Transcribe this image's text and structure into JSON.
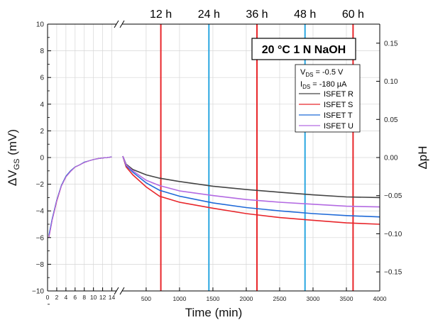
{
  "chart_data": {
    "type": "line",
    "xlabel": "Time (min)",
    "ylabel_left": "ΔV_GS (mV)",
    "ylabel_right": "ΔpH",
    "ylim_left": [
      -10,
      10
    ],
    "ylim_right": [
      -0.175,
      0.175
    ],
    "x_axis_break": true,
    "xlim_segment1": [
      0,
      15
    ],
    "xlim_segment2": [
      150,
      4000
    ],
    "x_ticks_segment1": [
      "0",
      "2",
      "4",
      "6",
      "8",
      "10",
      "12",
      "14"
    ],
    "x_ticks_segment2": [
      "500",
      "1000",
      "1500",
      "2000",
      "2500",
      "3000",
      "3500",
      "4000"
    ],
    "y_ticks_left": [
      "10",
      "8",
      "6",
      "4",
      "2",
      "0",
      "−2",
      "−4",
      "−6",
      "−8",
      "−10"
    ],
    "y_ticks_right": [
      "0.15",
      "0.10",
      "0.05",
      "0.00",
      "−0.05",
      "−0.10",
      "−0.15"
    ],
    "grid": true,
    "condition_label": "20 °C 1 N NaOH",
    "params": [
      "V",
      "DS",
      " = -0.5 V",
      "I",
      "DS",
      " = -180 µA"
    ],
    "vertical_markers": [
      {
        "label": "12 h",
        "x": 720,
        "color": "#e8262b"
      },
      {
        "label": "24 h",
        "x": 1440,
        "color": "#2aa6e0"
      },
      {
        "label": "36 h",
        "x": 2160,
        "color": "#e8262b"
      },
      {
        "label": "48 h",
        "x": 2880,
        "color": "#2aa6e0"
      },
      {
        "label": "60 h",
        "x": 3600,
        "color": "#e8262b"
      }
    ],
    "series": [
      {
        "name": "ISFET R",
        "color": "#444444",
        "seg1": [
          [
            0.3,
            -5.9
          ],
          [
            1,
            -4.6
          ],
          [
            2,
            -3.2
          ],
          [
            3,
            -2.1
          ],
          [
            4,
            -1.4
          ],
          [
            5,
            -1.0
          ],
          [
            6,
            -0.7
          ],
          [
            7,
            -0.55
          ],
          [
            8,
            -0.35
          ],
          [
            9,
            -0.25
          ],
          [
            10,
            -0.15
          ],
          [
            11,
            -0.08
          ],
          [
            12,
            -0.03
          ],
          [
            13,
            0.0
          ],
          [
            14,
            0.05
          ]
        ],
        "seg2": [
          [
            150,
            0.1
          ],
          [
            200,
            -0.5
          ],
          [
            300,
            -0.9
          ],
          [
            500,
            -1.3
          ],
          [
            700,
            -1.55
          ],
          [
            1000,
            -1.8
          ],
          [
            1500,
            -2.15
          ],
          [
            2000,
            -2.4
          ],
          [
            2500,
            -2.6
          ],
          [
            3000,
            -2.8
          ],
          [
            3500,
            -2.95
          ],
          [
            4000,
            -3.0
          ]
        ]
      },
      {
        "name": "ISFET S",
        "color": "#e8262b",
        "seg1": [
          [
            0.3,
            -6.0
          ],
          [
            1,
            -4.7
          ],
          [
            2,
            -3.3
          ],
          [
            3,
            -2.15
          ],
          [
            4,
            -1.45
          ],
          [
            5,
            -1.05
          ],
          [
            6,
            -0.72
          ],
          [
            7,
            -0.55
          ],
          [
            8,
            -0.37
          ],
          [
            9,
            -0.25
          ],
          [
            10,
            -0.15
          ],
          [
            11,
            -0.08
          ],
          [
            12,
            -0.03
          ],
          [
            13,
            0.0
          ],
          [
            14,
            0.04
          ]
        ],
        "seg2": [
          [
            150,
            0.1
          ],
          [
            200,
            -0.7
          ],
          [
            300,
            -1.3
          ],
          [
            500,
            -2.2
          ],
          [
            700,
            -2.9
          ],
          [
            1000,
            -3.35
          ],
          [
            1500,
            -3.8
          ],
          [
            2000,
            -4.2
          ],
          [
            2500,
            -4.5
          ],
          [
            3000,
            -4.7
          ],
          [
            3500,
            -4.9
          ],
          [
            4000,
            -5.0
          ]
        ]
      },
      {
        "name": "ISFET T",
        "color": "#1f6ad8",
        "seg1": [
          [
            0.3,
            -5.8
          ],
          [
            1,
            -4.6
          ],
          [
            2,
            -3.2
          ],
          [
            3,
            -2.1
          ],
          [
            4,
            -1.4
          ],
          [
            5,
            -1.0
          ],
          [
            6,
            -0.7
          ],
          [
            7,
            -0.55
          ],
          [
            8,
            -0.35
          ],
          [
            9,
            -0.25
          ],
          [
            10,
            -0.15
          ],
          [
            11,
            -0.08
          ],
          [
            12,
            -0.03
          ],
          [
            13,
            0.0
          ],
          [
            14,
            0.05
          ]
        ],
        "seg2": [
          [
            150,
            0.1
          ],
          [
            200,
            -0.6
          ],
          [
            300,
            -1.1
          ],
          [
            500,
            -1.9
          ],
          [
            700,
            -2.45
          ],
          [
            1000,
            -2.9
          ],
          [
            1500,
            -3.4
          ],
          [
            2000,
            -3.75
          ],
          [
            2500,
            -4.0
          ],
          [
            3000,
            -4.2
          ],
          [
            3500,
            -4.35
          ],
          [
            4000,
            -4.45
          ]
        ]
      },
      {
        "name": "ISFET U",
        "color": "#b36ae2",
        "seg1": [
          [
            0.3,
            -6.0
          ],
          [
            1,
            -4.7
          ],
          [
            2,
            -3.25
          ],
          [
            3,
            -2.15
          ],
          [
            4,
            -1.45
          ],
          [
            5,
            -1.05
          ],
          [
            6,
            -0.72
          ],
          [
            7,
            -0.55
          ],
          [
            8,
            -0.37
          ],
          [
            9,
            -0.25
          ],
          [
            10,
            -0.15
          ],
          [
            11,
            -0.08
          ],
          [
            12,
            -0.03
          ],
          [
            13,
            0.0
          ],
          [
            14,
            0.04
          ]
        ],
        "seg2": [
          [
            150,
            0.1
          ],
          [
            200,
            -0.55
          ],
          [
            300,
            -1.0
          ],
          [
            500,
            -1.7
          ],
          [
            700,
            -2.1
          ],
          [
            1000,
            -2.5
          ],
          [
            1500,
            -2.85
          ],
          [
            2000,
            -3.15
          ],
          [
            2500,
            -3.35
          ],
          [
            3000,
            -3.5
          ],
          [
            3500,
            -3.65
          ],
          [
            4000,
            -3.7
          ]
        ]
      }
    ]
  }
}
